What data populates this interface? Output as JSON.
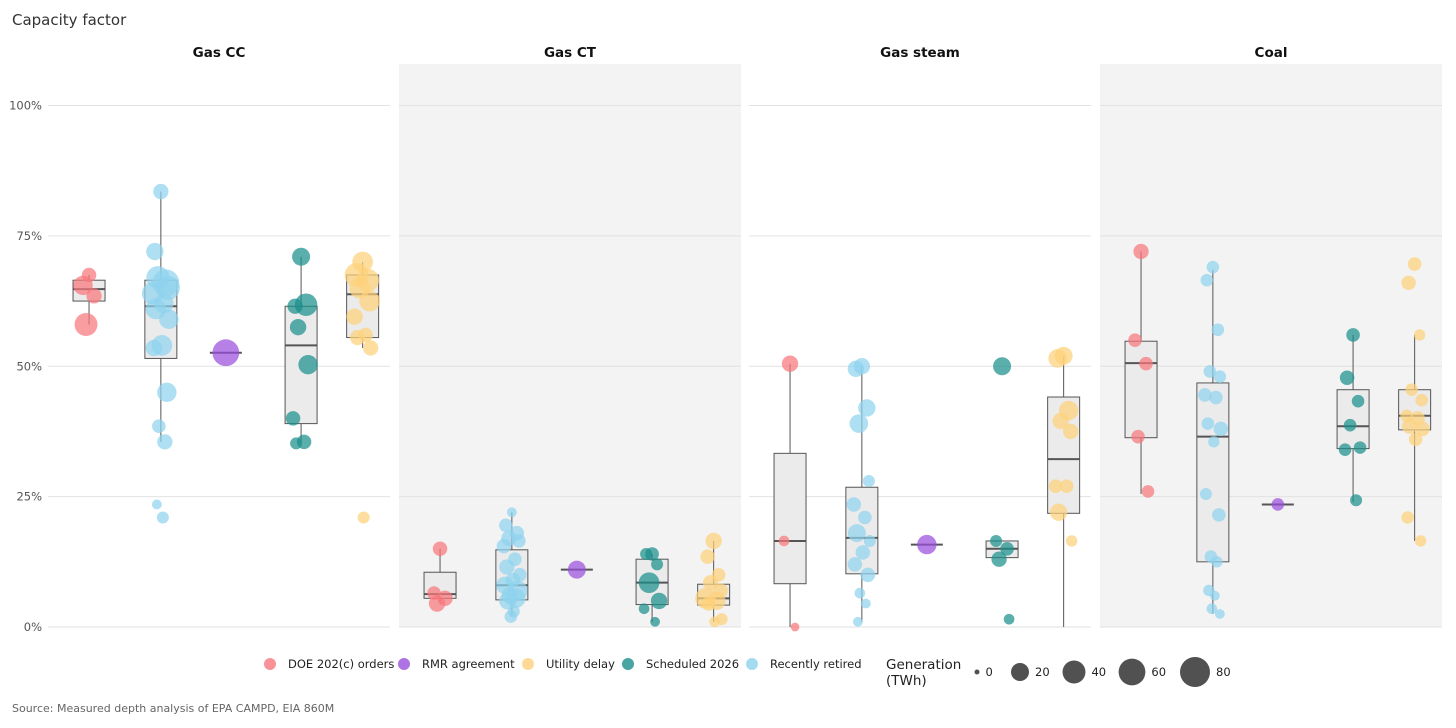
{
  "chart_data": {
    "type": "boxplot",
    "y_axis_title": "Capacity factor",
    "ylim": [
      0,
      100
    ],
    "y_ticks": [
      "0%",
      "25%",
      "50%",
      "75%",
      "100%"
    ],
    "panels": [
      "Gas CC",
      "Gas CT",
      "Gas steam",
      "Coal"
    ],
    "groups_order": [
      "DOE 202(c) orders",
      "Recently retired",
      "RMR agreement",
      "Scheduled 2026",
      "Utility delay"
    ],
    "colors": {
      "DOE 202(c) orders": "#f8777d",
      "RMR agreement": "#9b4fdc",
      "Utility delay": "#fdd17a",
      "Scheduled 2026": "#1a8f8a",
      "Recently retired": "#8fd2ef"
    },
    "legend": {
      "items": [
        "DOE 202(c) orders",
        "RMR agreement",
        "Utility delay",
        "Scheduled 2026",
        "Recently retired"
      ],
      "size_title": [
        "Generation",
        "(TWh)"
      ],
      "size_values": [
        0,
        20,
        40,
        60,
        80
      ]
    },
    "boxes": {
      "Gas CC": {
        "DOE 202(c) orders": {
          "q1": 62.5,
          "median": 64.8,
          "q3": 66.5,
          "wmin": 58,
          "wmax": 67.5
        },
        "Recently retired": {
          "q1": 51.5,
          "median": 61.5,
          "q3": 66.5,
          "wmin": 35.5,
          "wmax": 83.5
        },
        "RMR agreement": {
          "q1": 52.6,
          "median": 52.6,
          "q3": 52.6,
          "wmin": 52.6,
          "wmax": 52.6
        },
        "Scheduled 2026": {
          "q1": 39,
          "median": 54,
          "q3": 61.5,
          "wmin": 35.5,
          "wmax": 71
        },
        "Utility delay": {
          "q1": 55.5,
          "median": 63.8,
          "q3": 67.5,
          "wmin": 53.5,
          "wmax": 70
        }
      },
      "Gas CT": {
        "DOE 202(c) orders": {
          "q1": 5.5,
          "median": 6.3,
          "q3": 10.5,
          "wmin": 4.5,
          "wmax": 15
        },
        "Recently retired": {
          "q1": 5.2,
          "median": 8,
          "q3": 14.8,
          "wmin": 2,
          "wmax": 22
        },
        "RMR agreement": {
          "q1": 11,
          "median": 11,
          "q3": 11,
          "wmin": 11,
          "wmax": 11
        },
        "Scheduled 2026": {
          "q1": 4.3,
          "median": 8.5,
          "q3": 13,
          "wmin": 1,
          "wmax": 14
        },
        "Utility delay": {
          "q1": 4.2,
          "median": 5.5,
          "q3": 8.2,
          "wmin": 1,
          "wmax": 16.5
        }
      },
      "Gas steam": {
        "DOE 202(c) orders": {
          "q1": 8.3,
          "median": 16.5,
          "q3": 33.3,
          "wmin": 0,
          "wmax": 50.5
        },
        "Recently retired": {
          "q1": 10.2,
          "median": 17.1,
          "q3": 26.8,
          "wmin": 1,
          "wmax": 50
        },
        "RMR agreement": {
          "q1": 15.8,
          "median": 15.8,
          "q3": 15.8,
          "wmin": 15.8,
          "wmax": 15.8
        },
        "Scheduled 2026": {
          "q1": 13.3,
          "median": 15,
          "q3": 16.5,
          "wmin": 13.3,
          "wmax": 16.5
        },
        "Utility delay": {
          "q1": 21.8,
          "median": 32.2,
          "q3": 44.1,
          "wmin": 0,
          "wmax": 52
        }
      },
      "Coal": {
        "DOE 202(c) orders": {
          "q1": 36.3,
          "median": 50.6,
          "q3": 54.8,
          "wmin": 25.5,
          "wmax": 72
        },
        "Recently retired": {
          "q1": 12.5,
          "median": 36.5,
          "q3": 46.8,
          "wmin": 2.5,
          "wmax": 68.5
        },
        "RMR agreement": {
          "q1": 23.5,
          "median": 23.5,
          "q3": 23.5,
          "wmin": 23.5,
          "wmax": 23.5
        },
        "Scheduled 2026": {
          "q1": 34.2,
          "median": 38.5,
          "q3": 45.5,
          "wmin": 24,
          "wmax": 56
        },
        "Utility delay": {
          "q1": 37.8,
          "median": 40.5,
          "q3": 45.5,
          "wmin": 16.5,
          "wmax": 56
        }
      }
    },
    "points": {
      "Gas CC": {
        "DOE 202(c) orders": [
          [
            67.5,
            10
          ],
          [
            65.5,
            25
          ],
          [
            63.5,
            12
          ],
          [
            58,
            40
          ]
        ],
        "Recently retired": [
          [
            83.5,
            12
          ],
          [
            72,
            18
          ],
          [
            66,
            60
          ],
          [
            67,
            40
          ],
          [
            65,
            45
          ],
          [
            64,
            35
          ],
          [
            62,
            25
          ],
          [
            61,
            30
          ],
          [
            59,
            25
          ],
          [
            54,
            30
          ],
          [
            53.5,
            15
          ],
          [
            45,
            25
          ],
          [
            38.5,
            8
          ],
          [
            35.5,
            12
          ],
          [
            23.5,
            2
          ],
          [
            21,
            5
          ]
        ],
        "RMR agreement": [
          [
            52.6,
            60
          ]
        ],
        "Scheduled 2026": [
          [
            71,
            20
          ],
          [
            61.5,
            12
          ],
          [
            61.8,
            38
          ],
          [
            57.5,
            15
          ],
          [
            50.3,
            25
          ],
          [
            40,
            10
          ],
          [
            35.5,
            10
          ],
          [
            35.2,
            5
          ]
        ],
        "Utility delay": [
          [
            70,
            30
          ],
          [
            67.5,
            45
          ],
          [
            66.5,
            40
          ],
          [
            65,
            30
          ],
          [
            62.5,
            30
          ],
          [
            59.5,
            15
          ],
          [
            56,
            10
          ],
          [
            55.5,
            12
          ],
          [
            53.5,
            12
          ],
          [
            21,
            5
          ]
        ]
      },
      "Gas CT": {
        "DOE 202(c) orders": [
          [
            15,
            10
          ],
          [
            6.5,
            8
          ],
          [
            5.5,
            12
          ],
          [
            4.5,
            15
          ]
        ],
        "Recently retired": [
          [
            22,
            2
          ],
          [
            19.5,
            8
          ],
          [
            18,
            10
          ],
          [
            17,
            12
          ],
          [
            16.5,
            8
          ],
          [
            15.5,
            10
          ],
          [
            13,
            8
          ],
          [
            11.5,
            12
          ],
          [
            10,
            8
          ],
          [
            9,
            10
          ],
          [
            8,
            18
          ],
          [
            7,
            25
          ],
          [
            6,
            15
          ],
          [
            5.5,
            25
          ],
          [
            5,
            18
          ],
          [
            3,
            5
          ],
          [
            2,
            6
          ]
        ],
        "RMR agreement": [
          [
            11,
            20
          ]
        ],
        "Scheduled 2026": [
          [
            14,
            8
          ],
          [
            14,
            5
          ],
          [
            12,
            5
          ],
          [
            8.5,
            30
          ],
          [
            5,
            15
          ],
          [
            3.5,
            3
          ],
          [
            1,
            2
          ]
        ],
        "Utility delay": [
          [
            16.5,
            15
          ],
          [
            13.5,
            10
          ],
          [
            10,
            8
          ],
          [
            8.5,
            12
          ],
          [
            7,
            10
          ],
          [
            5.5,
            30
          ],
          [
            5,
            20
          ],
          [
            4.5,
            10
          ],
          [
            1.5,
            5
          ],
          [
            1,
            3
          ]
        ]
      },
      "Gas steam": {
        "DOE 202(c) orders": [
          [
            50.5,
            15
          ],
          [
            16.5,
            3
          ],
          [
            0,
            1
          ]
        ],
        "Recently retired": [
          [
            50,
            15
          ],
          [
            49.5,
            15
          ],
          [
            42,
            18
          ],
          [
            39,
            22
          ],
          [
            28,
            5
          ],
          [
            23.5,
            10
          ],
          [
            21,
            8
          ],
          [
            18,
            20
          ],
          [
            16.5,
            5
          ],
          [
            14.3,
            10
          ],
          [
            12,
            10
          ],
          [
            10,
            10
          ],
          [
            6.5,
            3
          ],
          [
            4.5,
            2
          ],
          [
            1,
            2
          ]
        ],
        "RMR agreement": [
          [
            15.8,
            25
          ]
        ],
        "Scheduled 2026": [
          [
            50,
            20
          ],
          [
            16.5,
            5
          ],
          [
            15,
            8
          ],
          [
            13,
            12
          ],
          [
            1.5,
            3
          ]
        ],
        "Utility delay": [
          [
            52,
            20
          ],
          [
            51.5,
            22
          ],
          [
            41.5,
            25
          ],
          [
            39.5,
            15
          ],
          [
            37.5,
            12
          ],
          [
            27,
            8
          ],
          [
            27,
            8
          ],
          [
            22,
            18
          ],
          [
            16.5,
            4
          ]
        ]
      },
      "Coal": {
        "DOE 202(c) orders": [
          [
            72,
            12
          ],
          [
            55,
            8
          ],
          [
            50.5,
            8
          ],
          [
            36.5,
            8
          ],
          [
            26,
            6
          ]
        ],
        "Recently retired": [
          [
            69,
            6
          ],
          [
            66.5,
            6
          ],
          [
            57,
            6
          ],
          [
            49,
            6
          ],
          [
            48,
            6
          ],
          [
            44.5,
            8
          ],
          [
            44,
            8
          ],
          [
            39,
            6
          ],
          [
            38,
            10
          ],
          [
            35.5,
            4
          ],
          [
            25.5,
            5
          ],
          [
            21.5,
            8
          ],
          [
            13.5,
            6
          ],
          [
            12.5,
            4
          ],
          [
            7,
            4
          ],
          [
            6,
            2
          ],
          [
            3.5,
            3
          ],
          [
            2.5,
            2
          ]
        ],
        "RMR agreement": [
          [
            23.5,
            6
          ]
        ],
        "Scheduled 2026": [
          [
            56,
            8
          ],
          [
            47.8,
            10
          ],
          [
            43.3,
            6
          ],
          [
            38.7,
            6
          ],
          [
            34.4,
            6
          ],
          [
            34,
            6
          ],
          [
            24.3,
            5
          ]
        ],
        "Utility delay": [
          [
            69.6,
            8
          ],
          [
            66,
            10
          ],
          [
            56,
            4
          ],
          [
            45.5,
            6
          ],
          [
            43.5,
            6
          ],
          [
            40.5,
            6
          ],
          [
            40,
            10
          ],
          [
            38.5,
            12
          ],
          [
            38,
            10
          ],
          [
            36,
            8
          ],
          [
            21,
            6
          ],
          [
            16.5,
            4
          ]
        ]
      }
    }
  },
  "source": "Source: Measured depth analysis of EPA CAMPD, EIA 860M"
}
